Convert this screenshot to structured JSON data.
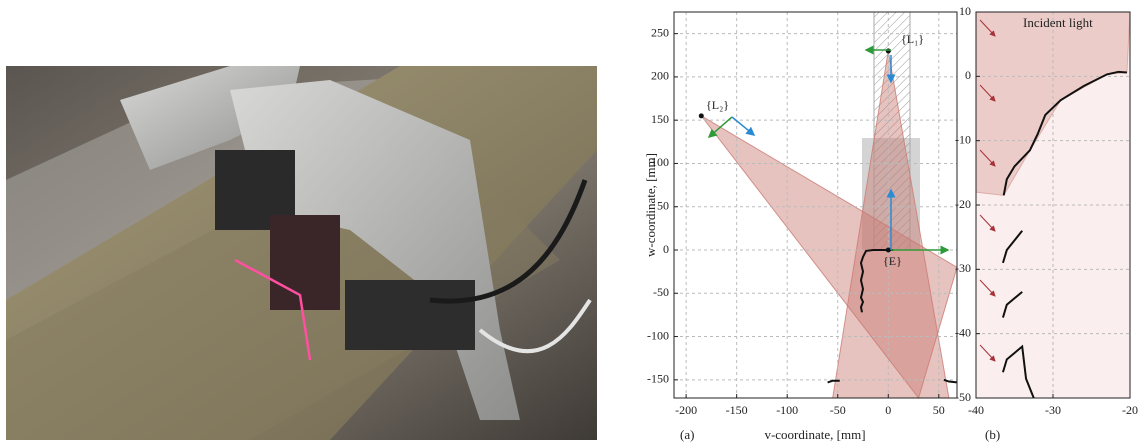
{
  "chart_data": [
    {
      "type": "line",
      "panel": "(a)",
      "xlabel": "v-coordinate, [mm]",
      "ylabel": "w-coordinate, [mm]",
      "xlim": [
        -212,
        68
      ],
      "ylim": [
        -171,
        275
      ],
      "xticks": [
        -200,
        -150,
        -100,
        -50,
        0,
        50
      ],
      "yticks": [
        -150,
        -100,
        -50,
        0,
        50,
        100,
        150,
        200,
        250
      ],
      "grid": true,
      "points": {
        "x": [
          0,
          -185,
          0
        ],
        "y": [
          230,
          155,
          0
        ],
        "labels": [
          "{L₁}",
          "{L₂}",
          "{E}"
        ],
        "color": "#111111"
      },
      "regions": [
        {
          "x": [
            0,
            -55,
            60
          ],
          "y": [
            230,
            -171,
            -171
          ],
          "color": "#c97a74"
        },
        {
          "x": [
            -185,
            68,
            30
          ],
          "y": [
            155,
            -20,
            -171
          ],
          "color": "#c97a74"
        }
      ],
      "profiles": [
        {
          "x": [
            5,
            -5,
            -15,
            -22,
            -25,
            -27,
            -25,
            -27,
            -25,
            -27,
            -25,
            -27,
            -26
          ],
          "y": [
            0,
            0,
            0,
            -1,
            -8,
            -15,
            -25,
            -35,
            -45,
            -55,
            -60,
            -66,
            -72
          ],
          "color": "#111111"
        },
        {
          "x": [
            -60,
            -55,
            -48
          ],
          "y": [
            -153,
            -151,
            -151
          ],
          "color": "#111111"
        },
        {
          "x": [
            55,
            60,
            68
          ],
          "y": [
            -150,
            -152,
            -153
          ],
          "color": "#111111"
        }
      ]
    },
    {
      "type": "line",
      "panel": "(b)",
      "annotation": "Incident light",
      "xlim": [
        -40,
        -20
      ],
      "ylim": [
        -50,
        10
      ],
      "xticks": [
        -40,
        -30,
        -20
      ],
      "yticks": [
        -50,
        -40,
        -30,
        -20,
        -10,
        0,
        10
      ],
      "grid": true,
      "regions": [
        {
          "x": [
            -40,
            -20,
            -20,
            -40
          ],
          "y": [
            10,
            10,
            -50,
            -50
          ],
          "color": "#f3dcd9"
        },
        {
          "x": [
            -40,
            -20,
            -20.4,
            -23,
            -29,
            -33,
            -36.4,
            -40
          ],
          "y": [
            10,
            10,
            0.6,
            0.3,
            -3.7,
            -11.5,
            -18.5,
            -18
          ],
          "color": "#d9a19b"
        }
      ],
      "profiles": [
        {
          "x": [
            -20.4,
            -21.5,
            -23,
            -26,
            -29,
            -31,
            -32,
            -33,
            -35,
            -36,
            -36.4
          ],
          "y": [
            0.6,
            0.7,
            0.3,
            -1.5,
            -3.7,
            -6,
            -9,
            -11.5,
            -14,
            -16,
            -18.5
          ],
          "color": "#111111"
        },
        {
          "x": [
            -36.5,
            -36,
            -35,
            -34
          ],
          "y": [
            -29,
            -27,
            -25.5,
            -24
          ],
          "color": "#111111"
        },
        {
          "x": [
            -36.5,
            -36,
            -35,
            -34
          ],
          "y": [
            -37.5,
            -35.5,
            -34.5,
            -33.5
          ],
          "color": "#111111"
        },
        {
          "x": [
            -36.5,
            -36,
            -35,
            -34,
            -33.5,
            -33,
            -32.5
          ],
          "y": [
            -46,
            -44,
            -43,
            -42,
            -47,
            -48.5,
            -50
          ],
          "color": "#111111"
        }
      ]
    }
  ]
}
